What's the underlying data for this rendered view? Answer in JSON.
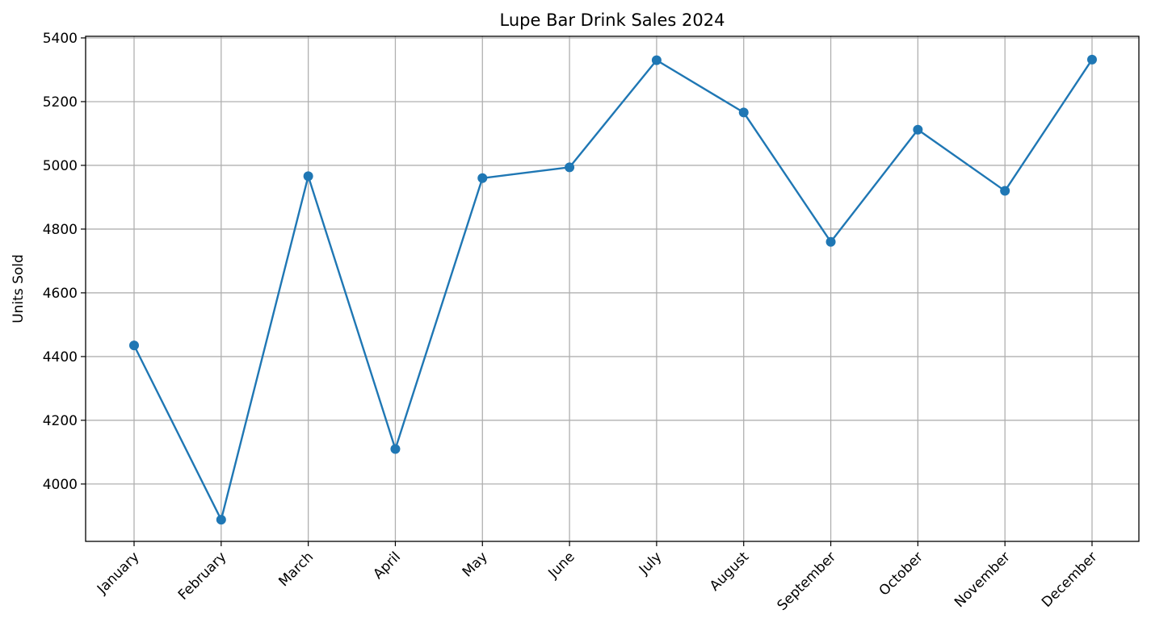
{
  "chart_data": {
    "type": "line",
    "title": "Lupe Bar Drink Sales 2024",
    "xlabel": "",
    "ylabel": "Units Sold",
    "categories": [
      "January",
      "February",
      "March",
      "April",
      "May",
      "June",
      "July",
      "August",
      "September",
      "October",
      "November",
      "December"
    ],
    "series": [
      {
        "values": [
          4435,
          3888,
          4966,
          4110,
          4960,
          4994,
          5330,
          5166,
          4760,
          5112,
          4920,
          5332
        ],
        "color": "#1f77b4",
        "marker": "circle"
      }
    ],
    "ylim": [
      3820,
      5405
    ],
    "yticks": [
      4000,
      4200,
      4400,
      4600,
      4800,
      5000,
      5200,
      5400
    ],
    "grid": true,
    "legend": "none"
  }
}
